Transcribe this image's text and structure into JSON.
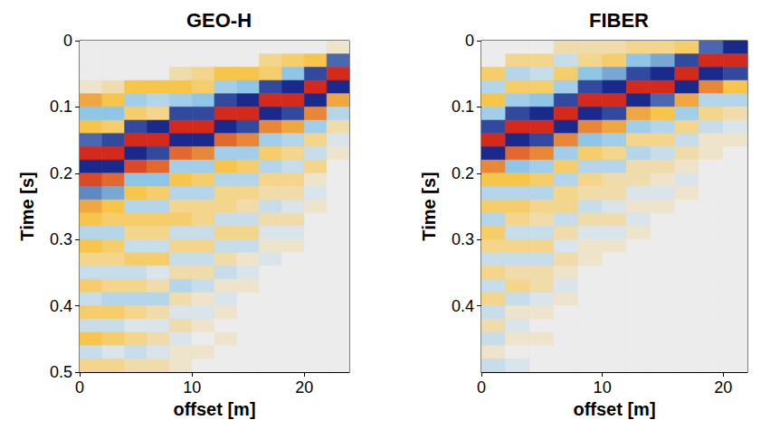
{
  "chart_data": [
    {
      "type": "heatmap",
      "title": "GEO-H",
      "x_label": "offset [m]",
      "y_label": "Time [s]",
      "xlim": [
        0,
        24
      ],
      "xticks": [
        0,
        10,
        20
      ],
      "ylim": [
        0,
        0.5
      ],
      "yticks": [
        0,
        0.1,
        0.2,
        0.3,
        0.4,
        0.5
      ],
      "zlim": [
        -1,
        1
      ],
      "x": [
        0,
        2,
        4,
        6,
        8,
        10,
        12,
        14,
        16,
        18,
        20,
        22
      ],
      "y": [
        0,
        0.02,
        0.04,
        0.06,
        0.08,
        0.1,
        0.12,
        0.14,
        0.16,
        0.18,
        0.2,
        0.22,
        0.24,
        0.26,
        0.28,
        0.3,
        0.32,
        0.34,
        0.36,
        0.38,
        0.4,
        0.42,
        0.44,
        0.46,
        0.48
      ],
      "z": [
        [
          0,
          0,
          0,
          0.1,
          0.6,
          -0.5,
          0.5,
          -0.8,
          1,
          -1,
          0.9,
          -0.7,
          0.6,
          0.5,
          -0.3,
          0.5,
          0.3,
          -0.2,
          0.4,
          -0.2,
          0.4,
          -0.2,
          0.5,
          -0.2,
          0.3
        ],
        [
          0,
          0,
          0,
          0.2,
          0.5,
          -0.5,
          0.4,
          -0.9,
          1,
          -1,
          0.8,
          -0.6,
          0.5,
          0.4,
          -0.3,
          0.4,
          0.3,
          -0.2,
          0.3,
          -0.3,
          0.4,
          -0.2,
          0.4,
          -0.1,
          0.3
        ],
        [
          0,
          0,
          0,
          0.5,
          -0.4,
          0.4,
          -0.9,
          1,
          -1,
          0.9,
          -0.5,
          0.5,
          -0.3,
          0.4,
          0.3,
          -0.2,
          0.4,
          -0.2,
          0.3,
          -0.3,
          0.3,
          -0.1,
          0.3,
          -0.2,
          0.2
        ],
        [
          0,
          0,
          0,
          0.5,
          -0.3,
          0.3,
          -1,
          1,
          -0.9,
          0.8,
          -0.5,
          0.4,
          -0.3,
          0.4,
          0.3,
          -0.2,
          0.4,
          -0.1,
          0.2,
          -0.3,
          0.2,
          -0.1,
          0.2,
          -0.1,
          0.2
        ],
        [
          0,
          0,
          0.2,
          0.5,
          -0.4,
          -0.9,
          1,
          -1,
          0.8,
          -0.4,
          0.5,
          -0.3,
          0.3,
          0.4,
          -0.2,
          0.3,
          -0.2,
          0.2,
          -0.3,
          0.2,
          -0.1,
          0.2,
          -0.1,
          0.1,
          0.1
        ],
        [
          0,
          0,
          0.3,
          0.4,
          -0.5,
          -0.9,
          1,
          -1,
          0.7,
          -0.4,
          0.4,
          -0.3,
          0.3,
          0.3,
          -0.2,
          0.3,
          -0.2,
          0.2,
          -0.2,
          0.1,
          -0.1,
          0.1,
          0,
          0.1,
          0
        ],
        [
          0,
          0,
          0.5,
          -0.4,
          -0.9,
          1,
          -1,
          0.8,
          -0.4,
          0.5,
          -0.3,
          0.3,
          0.3,
          -0.2,
          0.3,
          -0.2,
          0.2,
          -0.2,
          0.1,
          -0.1,
          0.1,
          0,
          0.1,
          0,
          0
        ],
        [
          0,
          0,
          0.5,
          -0.5,
          -1,
          1,
          -0.9,
          0.7,
          -0.4,
          0.4,
          -0.3,
          0.3,
          0.2,
          -0.2,
          0.3,
          -0.2,
          0.1,
          -0.1,
          0.1,
          0,
          0,
          0,
          0,
          0,
          0
        ],
        [
          0,
          0.3,
          0.4,
          -0.9,
          1,
          -1,
          0.7,
          -0.4,
          0.4,
          -0.3,
          0.3,
          0.2,
          -0.2,
          0.2,
          -0.1,
          0.1,
          -0.1,
          0,
          0,
          0,
          0,
          0,
          0,
          0,
          0
        ],
        [
          0,
          0.4,
          -0.5,
          -1,
          1,
          -0.9,
          0.6,
          -0.3,
          0.3,
          -0.2,
          0.3,
          0.2,
          -0.1,
          0.2,
          -0.1,
          0.1,
          0,
          0,
          0,
          0,
          0,
          0,
          0,
          0,
          0
        ],
        [
          0,
          0.5,
          -0.9,
          1,
          -1,
          0.7,
          -0.4,
          0.3,
          -0.2,
          0.3,
          0.1,
          -0.1,
          0.1,
          0,
          0,
          0,
          0,
          0,
          0,
          0,
          0,
          0,
          0,
          0,
          0
        ],
        [
          0.1,
          -0.8,
          1,
          -1,
          0.6,
          -0.3,
          0.2,
          -0.1,
          0.1,
          0,
          0,
          0,
          0,
          0,
          0,
          0,
          0,
          0,
          0,
          0,
          0,
          0,
          0,
          0,
          0
        ]
      ]
    },
    {
      "type": "heatmap",
      "title": "FIBER",
      "x_label": "offset [m]",
      "y_label": "Time [s]",
      "xlim": [
        0,
        22
      ],
      "xticks": [
        0,
        10,
        20
      ],
      "ylim": [
        0,
        0.5
      ],
      "yticks": [
        0,
        0.1,
        0.2,
        0.3,
        0.4
      ],
      "zlim": [
        -1,
        1
      ],
      "x": [
        0,
        2,
        4,
        6,
        8,
        10,
        12,
        14,
        16,
        18,
        20
      ],
      "y": [
        0,
        0.02,
        0.04,
        0.06,
        0.08,
        0.1,
        0.12,
        0.14,
        0.16,
        0.18,
        0.2,
        0.22,
        0.24,
        0.26,
        0.28,
        0.3,
        0.32,
        0.34,
        0.36,
        0.38,
        0.4,
        0.42,
        0.44,
        0.46,
        0.48
      ],
      "z": [
        [
          0,
          0,
          0.4,
          -0.3,
          0.5,
          -0.4,
          -0.9,
          1,
          -1,
          0.7,
          0.5,
          -0.3,
          0.4,
          -0.3,
          0.4,
          0.3,
          -0.2,
          0.3,
          -0.2,
          0.3,
          -0.2,
          0.2,
          -0.2,
          0.1,
          -0.2
        ],
        [
          0,
          0.3,
          -0.3,
          0.4,
          -0.4,
          -0.9,
          1,
          -1,
          0.8,
          -0.5,
          0.5,
          -0.3,
          0.4,
          0.3,
          -0.2,
          0.3,
          -0.2,
          0.2,
          0.3,
          -0.2,
          0.1,
          -0.1,
          0.1,
          0,
          -0.1
        ],
        [
          0,
          0.3,
          -0.2,
          0.4,
          -0.5,
          -1,
          1,
          -0.9,
          0.7,
          -0.4,
          0.4,
          -0.3,
          0.3,
          0.2,
          -0.2,
          0.3,
          -0.2,
          0.2,
          0.2,
          -0.1,
          0.1,
          0,
          0.1,
          0,
          0
        ],
        [
          0.2,
          -0.2,
          0.4,
          -0.4,
          -0.9,
          1,
          -1,
          0.7,
          -0.4,
          0.4,
          -0.3,
          0.3,
          0.3,
          -0.2,
          0.2,
          -0.1,
          0.2,
          0.1,
          -0.1,
          0.1,
          0,
          0,
          0,
          0,
          0
        ],
        [
          0.2,
          0.3,
          -0.5,
          -0.9,
          1,
          -1,
          0.7,
          -0.5,
          0.4,
          -0.3,
          0.3,
          0.2,
          -0.2,
          0.2,
          -0.1,
          0.1,
          0.1,
          0,
          0,
          0,
          0,
          0,
          0,
          0,
          0
        ],
        [
          0.2,
          0.4,
          -0.6,
          -1,
          1,
          -0.9,
          0.6,
          -0.4,
          0.3,
          -0.3,
          0.2,
          0.2,
          -0.1,
          0.2,
          -0.1,
          0.1,
          0,
          0,
          0,
          0,
          0,
          0,
          0,
          0,
          0
        ],
        [
          0.3,
          -0.5,
          -0.9,
          1,
          -1,
          0.6,
          -0.4,
          0.3,
          -0.3,
          0.2,
          0.2,
          -0.1,
          0.1,
          -0.1,
          0.1,
          0,
          0,
          0,
          0,
          0,
          0,
          0,
          0,
          0,
          0
        ],
        [
          0.3,
          -0.6,
          -1,
          1,
          -0.8,
          0.5,
          -0.3,
          0.3,
          -0.2,
          0.2,
          0.1,
          -0.1,
          0.1,
          0,
          0,
          0,
          0,
          0,
          0,
          0,
          0,
          0,
          0,
          0,
          0
        ],
        [
          0.4,
          -0.9,
          1,
          -1,
          0.6,
          -0.4,
          0.3,
          -0.2,
          0.2,
          0.1,
          -0.1,
          0.1,
          0,
          0,
          0,
          0,
          0,
          0,
          0,
          0,
          0,
          0,
          0,
          0,
          0
        ],
        [
          -0.8,
          1,
          -1,
          0.7,
          -0.3,
          0.3,
          -0.2,
          0.1,
          0.1,
          0,
          0,
          0,
          0,
          0,
          0,
          0,
          0,
          0,
          0,
          0,
          0,
          0,
          0,
          0,
          0
        ],
        [
          -1,
          1,
          -0.9,
          0.5,
          -0.3,
          0.2,
          -0.1,
          0.1,
          0,
          0,
          0,
          0,
          0,
          0,
          0,
          0,
          0,
          0,
          0,
          0,
          0,
          0,
          0,
          0,
          0
        ]
      ]
    }
  ]
}
